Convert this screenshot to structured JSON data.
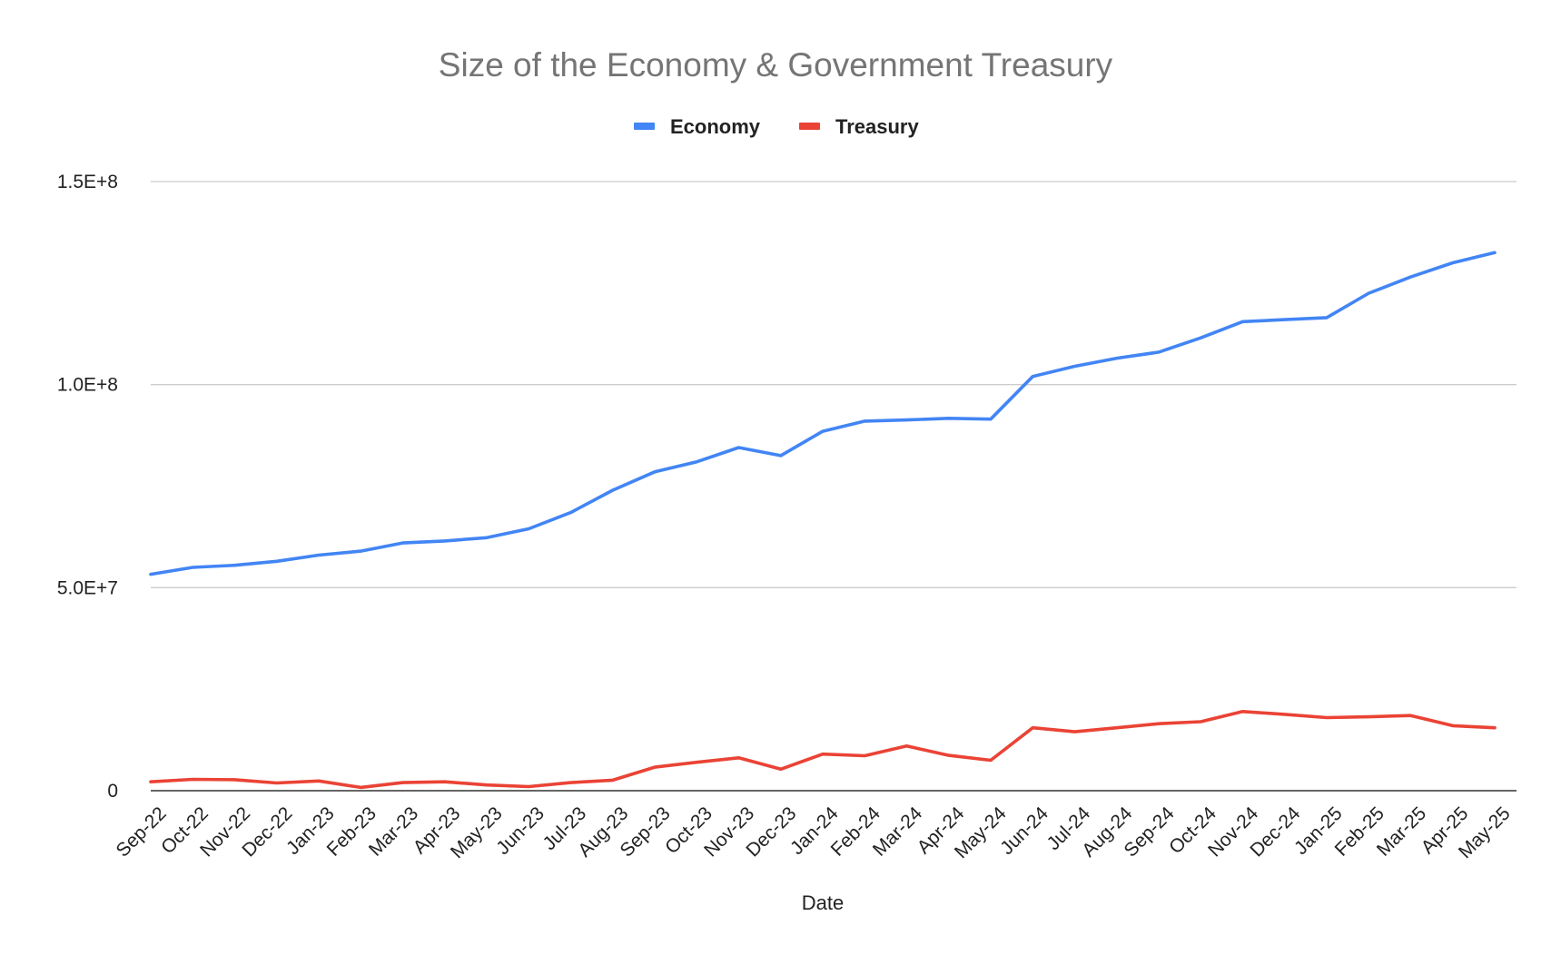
{
  "chart_data": {
    "type": "line",
    "title": "Size of the Economy & Government Treasury",
    "xlabel": "Date",
    "ylabel": "",
    "ylim": [
      0,
      150000000
    ],
    "yticks": [
      {
        "value": 0,
        "label": "0"
      },
      {
        "value": 50000000,
        "label": "5.0E+7"
      },
      {
        "value": 100000000,
        "label": "1.0E+8"
      },
      {
        "value": 150000000,
        "label": "1.5E+8"
      }
    ],
    "grid": true,
    "legend_position": "top",
    "categories": [
      "Sep-22",
      "Oct-22",
      "Nov-22",
      "Dec-22",
      "Jan-23",
      "Feb-23",
      "Mar-23",
      "Apr-23",
      "May-23",
      "Jun-23",
      "Jul-23",
      "Aug-23",
      "Sep-23",
      "Oct-23",
      "Nov-23",
      "Dec-23",
      "Jan-24",
      "Feb-24",
      "Mar-24",
      "Apr-24",
      "May-24",
      "Jun-24",
      "Jul-24",
      "Aug-24",
      "Sep-24",
      "Oct-24",
      "Nov-24",
      "Dec-24",
      "Jan-25",
      "Feb-25",
      "Mar-25",
      "Apr-25",
      "May-25"
    ],
    "series": [
      {
        "name": "Economy",
        "color": "#4285f4",
        "values": [
          53300000,
          55000000,
          55500000,
          56500000,
          58000000,
          59000000,
          61000000,
          61500000,
          62300000,
          64500000,
          68500000,
          74000000,
          78500000,
          81000000,
          84500000,
          82500000,
          88500000,
          91000000,
          91300000,
          91700000,
          91500000,
          102000000,
          104500000,
          106500000,
          108000000,
          111500000,
          115500000,
          116000000,
          116500000,
          122500000,
          126500000,
          130000000,
          132500000
        ]
      },
      {
        "name": "Treasury",
        "color": "#ea4335",
        "values": [
          2200000,
          2800000,
          2700000,
          1900000,
          2400000,
          800000,
          2000000,
          2200000,
          1400000,
          1000000,
          2000000,
          2600000,
          5800000,
          7000000,
          8100000,
          5300000,
          9000000,
          8600000,
          11000000,
          8700000,
          7500000,
          15500000,
          14500000,
          15500000,
          16500000,
          17000000,
          19500000,
          18800000,
          18000000,
          18200000,
          18500000,
          16000000,
          15500000
        ]
      }
    ]
  }
}
